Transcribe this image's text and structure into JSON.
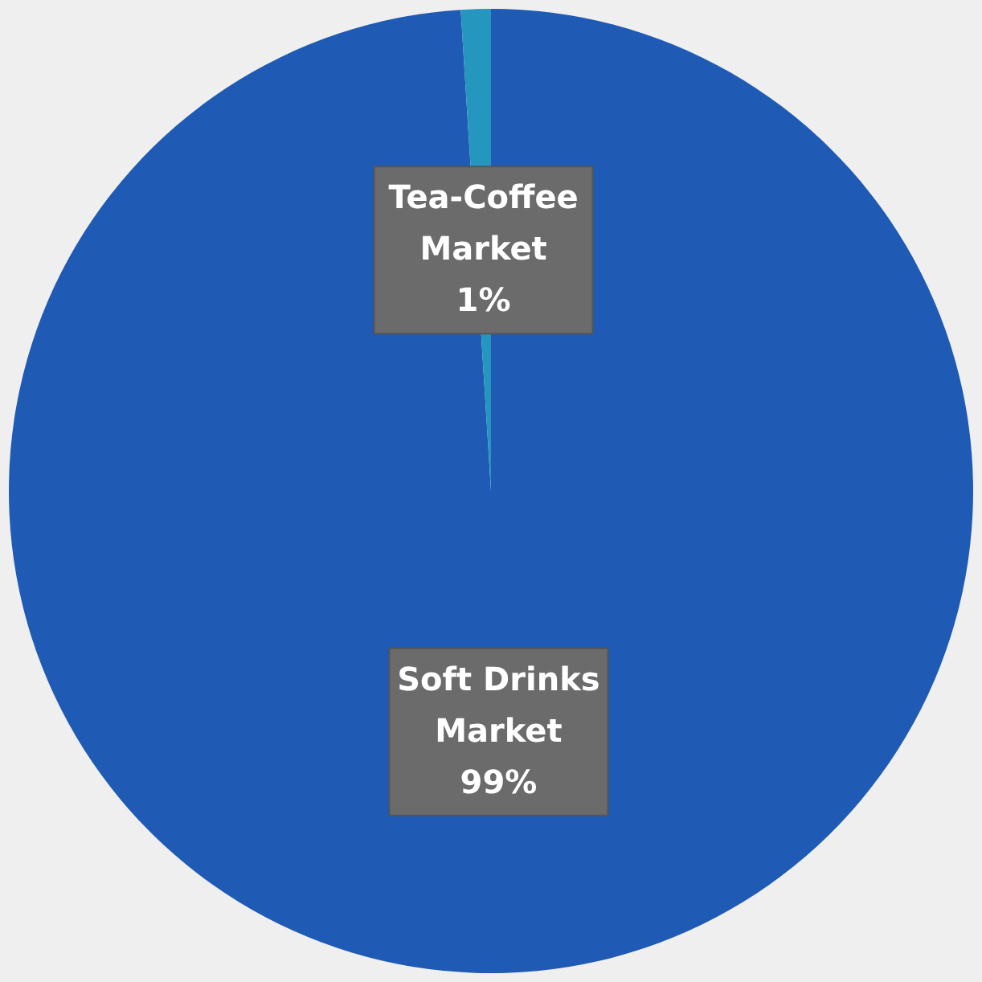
{
  "chart_data": {
    "type": "pie",
    "categories": [
      "Soft Drinks Market",
      "Tea-Coffee Market"
    ],
    "values": [
      99,
      1
    ],
    "colors": [
      "#1f5ab4",
      "#2597bf"
    ],
    "value_labels": [
      "99%",
      "1%"
    ]
  }
}
